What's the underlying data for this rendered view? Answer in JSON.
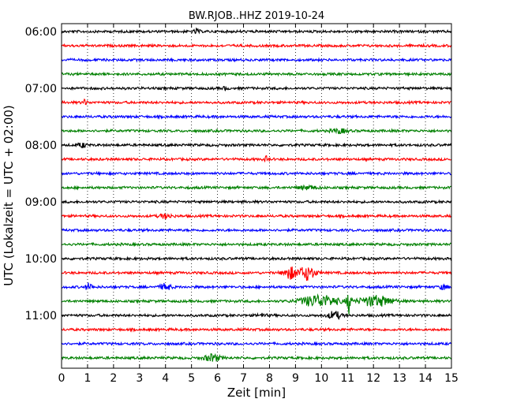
{
  "chart_data": {
    "type": "line",
    "title": "BW.RJOB..HHZ 2019-10-24",
    "xlabel": "Zeit  [min]",
    "ylabel": "UTC (Lokalzeit = UTC + 02:00)",
    "xlim": [
      0,
      15
    ],
    "x_ticks": [
      "0",
      "1",
      "2",
      "3",
      "4",
      "5",
      "6",
      "7",
      "8",
      "9",
      "10",
      "11",
      "12",
      "13",
      "14",
      "15"
    ],
    "y_tick_labels": [
      "06:00",
      "07:00",
      "08:00",
      "09:00",
      "10:00",
      "11:00"
    ],
    "row_minutes": 15,
    "grid": "vertical dotted",
    "colors": [
      "#000000",
      "#ff0000",
      "#0000ff",
      "#008000"
    ],
    "traces": [
      {
        "start": "06:00",
        "color": "#000000",
        "events": [
          {
            "t": 5.2,
            "amp": 0.3,
            "dur": 0.2
          }
        ]
      },
      {
        "start": "06:15",
        "color": "#ff0000",
        "events": []
      },
      {
        "start": "06:30",
        "color": "#0000ff",
        "events": []
      },
      {
        "start": "06:45",
        "color": "#008000",
        "events": []
      },
      {
        "start": "07:00",
        "color": "#000000",
        "events": [
          {
            "t": 6.3,
            "amp": 0.2,
            "dur": 0.2
          }
        ]
      },
      {
        "start": "07:15",
        "color": "#ff0000",
        "events": [
          {
            "t": 0.9,
            "amp": 0.3,
            "dur": 0.2
          }
        ]
      },
      {
        "start": "07:30",
        "color": "#0000ff",
        "events": []
      },
      {
        "start": "07:45",
        "color": "#008000",
        "events": [
          {
            "t": 10.7,
            "amp": 0.25,
            "dur": 0.6
          }
        ]
      },
      {
        "start": "08:00",
        "color": "#000000",
        "events": [
          {
            "t": 0.8,
            "amp": 0.3,
            "dur": 0.3
          }
        ]
      },
      {
        "start": "08:15",
        "color": "#ff0000",
        "events": [
          {
            "t": 7.9,
            "amp": 0.35,
            "dur": 0.2
          }
        ]
      },
      {
        "start": "08:30",
        "color": "#0000ff",
        "events": []
      },
      {
        "start": "08:45",
        "color": "#008000",
        "events": [
          {
            "t": 9.5,
            "amp": 0.2,
            "dur": 0.8
          }
        ]
      },
      {
        "start": "09:00",
        "color": "#000000",
        "events": []
      },
      {
        "start": "09:15",
        "color": "#ff0000",
        "events": [
          {
            "t": 4.0,
            "amp": 0.25,
            "dur": 0.5
          }
        ]
      },
      {
        "start": "09:30",
        "color": "#0000ff",
        "events": []
      },
      {
        "start": "09:45",
        "color": "#008000",
        "events": []
      },
      {
        "start": "10:00",
        "color": "#000000",
        "events": []
      },
      {
        "start": "10:15",
        "color": "#ff0000",
        "events": [
          {
            "t": 8.8,
            "amp": 0.75,
            "dur": 0.5
          },
          {
            "t": 9.45,
            "amp": 0.9,
            "dur": 0.6
          }
        ]
      },
      {
        "start": "10:30",
        "color": "#0000ff",
        "events": [
          {
            "t": 1.05,
            "amp": 0.45,
            "dur": 0.25
          },
          {
            "t": 4.0,
            "amp": 0.4,
            "dur": 0.4
          },
          {
            "t": 14.7,
            "amp": 0.3,
            "dur": 0.3
          }
        ]
      },
      {
        "start": "10:45",
        "color": "#008000",
        "events": [
          {
            "t": 9.9,
            "amp": 0.75,
            "dur": 1.4
          },
          {
            "t": 11.05,
            "amp": 1.5,
            "dur": 0.15
          },
          {
            "t": 12.1,
            "amp": 0.65,
            "dur": 1.3
          }
        ]
      },
      {
        "start": "11:00",
        "color": "#000000",
        "events": [
          {
            "t": 10.5,
            "amp": 0.5,
            "dur": 0.5
          },
          {
            "t": 7.7,
            "amp": 0.2,
            "dur": 0.3
          }
        ]
      },
      {
        "start": "11:15",
        "color": "#ff0000",
        "events": []
      },
      {
        "start": "11:30",
        "color": "#0000ff",
        "events": []
      },
      {
        "start": "11:45",
        "color": "#008000",
        "events": [
          {
            "t": 5.8,
            "amp": 0.45,
            "dur": 0.6
          }
        ]
      }
    ]
  }
}
